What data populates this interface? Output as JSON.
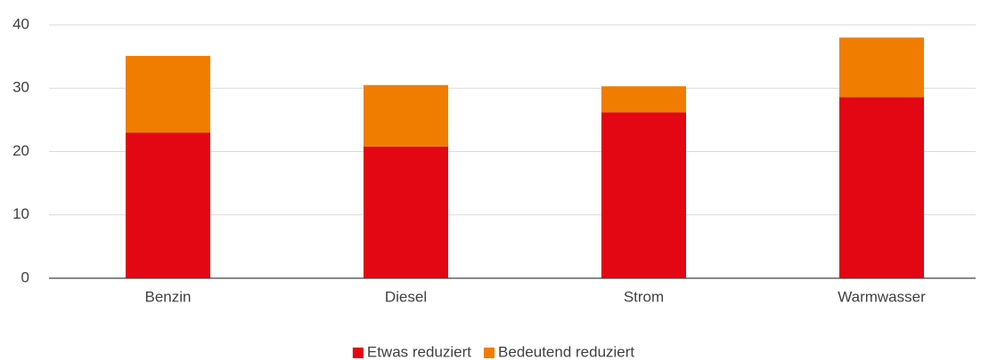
{
  "chart_data": {
    "type": "bar",
    "stacked": true,
    "categories": [
      "Benzin",
      "Diesel",
      "Strom",
      "Warmwasser"
    ],
    "series": [
      {
        "name": "Etwas reduziert",
        "color": "#e30613",
        "values": [
          23.0,
          20.8,
          26.2,
          28.6
        ]
      },
      {
        "name": "Bedeutend reduziert",
        "color": "#f07d00",
        "values": [
          12.1,
          9.7,
          4.1,
          9.4
        ]
      }
    ],
    "ylim": [
      0,
      40
    ],
    "yticks": [
      0,
      10,
      20,
      30,
      40
    ],
    "grid": true,
    "legend": "bottom"
  }
}
